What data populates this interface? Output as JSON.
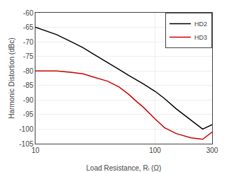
{
  "chart_data": {
    "type": "line",
    "xlabel": "Load Resistance, Rₗ (Ω)",
    "ylabel": "Harmonic Distortion (dBc)",
    "log": "x",
    "xlim": [
      10,
      300
    ],
    "xticks": [
      10,
      100,
      300
    ],
    "ylim": [
      -105,
      -60
    ],
    "yticks": [
      -105,
      -100,
      -95,
      -90,
      -85,
      -80,
      -75,
      -70,
      -65,
      -60
    ],
    "grid": true,
    "legend": "upper right",
    "series": [
      {
        "name": "HD2",
        "color": "#000000",
        "x": [
          10,
          12,
          15,
          20,
          25,
          30,
          40,
          50,
          60,
          70,
          80,
          100,
          120,
          150,
          200,
          250,
          300
        ],
        "values": [
          -65,
          -66.2,
          -67.5,
          -70,
          -72,
          -74,
          -77,
          -79.5,
          -81.5,
          -83,
          -84.5,
          -87,
          -89.5,
          -93,
          -97,
          -100,
          -98.5
        ]
      },
      {
        "name": "HD3",
        "color": "#cc0000",
        "x": [
          10,
          12,
          15,
          20,
          25,
          30,
          40,
          50,
          60,
          70,
          80,
          100,
          120,
          150,
          200,
          250,
          270,
          300
        ],
        "values": [
          -80,
          -80,
          -80,
          -80.5,
          -81,
          -82,
          -83.5,
          -85.5,
          -88,
          -90.5,
          -92.5,
          -96.5,
          -99.5,
          -101.5,
          -103,
          -103.5,
          -102.5,
          -101
        ]
      }
    ]
  }
}
